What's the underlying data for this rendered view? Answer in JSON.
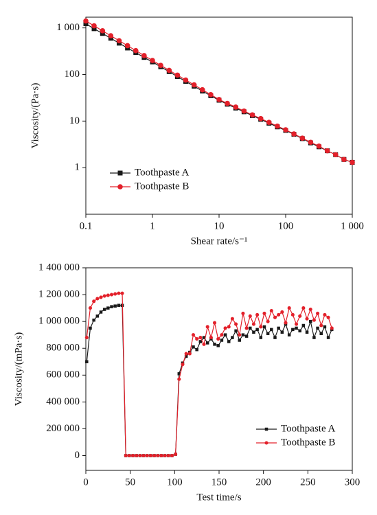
{
  "chart_data": [
    {
      "type": "line",
      "xlabel": "Shear rate/s⁻¹",
      "ylabel": "Viscosity/(Pa·s)",
      "xscale": "log",
      "yscale": "log",
      "xlim": [
        0.1,
        1000
      ],
      "ylim": [
        0.1,
        1700
      ],
      "xticks": [
        0.1,
        1,
        10,
        100,
        {
          "value": 1000,
          "label": "1 000"
        }
      ],
      "yticks": [
        1,
        10,
        100,
        {
          "value": 1000,
          "label": "1 000"
        }
      ],
      "legend": "lower left",
      "x": [
        0.1,
        0.133,
        0.178,
        0.237,
        0.316,
        0.422,
        0.562,
        0.75,
        1,
        1.33,
        1.78,
        2.37,
        3.16,
        4.22,
        5.62,
        7.5,
        10,
        13.3,
        17.8,
        23.7,
        31.6,
        42.2,
        56.2,
        75,
        100,
        133,
        178,
        237,
        316,
        422,
        562,
        750,
        1000
      ],
      "series": [
        {
          "name": "Toothpaste A",
          "color": "#1a1a1a",
          "marker": "square",
          "values": [
            1230,
            960,
            760,
            600,
            470,
            370,
            295,
            232,
            186,
            146,
            115,
            90,
            71,
            56,
            44,
            35,
            28,
            23,
            19,
            15.8,
            13.1,
            10.9,
            9.0,
            7.5,
            6.3,
            5.2,
            4.2,
            3.4,
            2.8,
            2.3,
            1.9,
            1.5,
            1.3
          ]
        },
        {
          "name": "Toothpaste B",
          "color": "#e3202a",
          "marker": "circle",
          "values": [
            1410,
            1110,
            867,
            678,
            531,
            416,
            326,
            255,
            200,
            157,
            123,
            97,
            76,
            60,
            47,
            37,
            29,
            24,
            20,
            16.4,
            13.6,
            11.3,
            9.4,
            7.8,
            6.5,
            5.3,
            4.3,
            3.5,
            2.9,
            2.3,
            1.9,
            1.5,
            1.3
          ]
        }
      ]
    },
    {
      "type": "line",
      "xlabel": "Test time/s",
      "ylabel": "Viscosity/(mPa·s)",
      "xlim": [
        0,
        300
      ],
      "ylim": [
        -110000,
        1400000
      ],
      "xticks": [
        0,
        50,
        100,
        150,
        200,
        250,
        300
      ],
      "yticks": [
        0,
        {
          "value": 200000,
          "label": "200 000"
        },
        {
          "value": 400000,
          "label": "400 000"
        },
        {
          "value": 600000,
          "label": "600 000"
        },
        {
          "value": 800000,
          "label": "800 000"
        },
        {
          "value": 1000000,
          "label": "1 000 000"
        },
        {
          "value": 1200000,
          "label": "1 200 000"
        },
        {
          "value": 1400000,
          "label": "1 400 000"
        }
      ],
      "legend": "lower right",
      "x": [
        1,
        5,
        9,
        13,
        17,
        21,
        25,
        29,
        33,
        37,
        41,
        45,
        49,
        53,
        57,
        61,
        65,
        69,
        73,
        77,
        81,
        85,
        89,
        93,
        97,
        101,
        105,
        109,
        113,
        117,
        121,
        125,
        129,
        133,
        137,
        141,
        145,
        149,
        153,
        157,
        161,
        165,
        169,
        173,
        177,
        181,
        185,
        189,
        193,
        197,
        201,
        205,
        209,
        213,
        217,
        221,
        225,
        229,
        233,
        237,
        241,
        245,
        249,
        253,
        257,
        261,
        265,
        269,
        273,
        277
      ],
      "series": [
        {
          "name": "Toothpaste A",
          "color": "#1a1a1a",
          "marker": "square",
          "values": [
            700000,
            950000,
            1010000,
            1040000,
            1070000,
            1090000,
            1100000,
            1110000,
            1115000,
            1120000,
            1120000,
            0,
            0,
            0,
            0,
            0,
            0,
            0,
            0,
            0,
            0,
            0,
            0,
            0,
            0,
            10000,
            610000,
            690000,
            740000,
            770000,
            810000,
            790000,
            850000,
            880000,
            840000,
            870000,
            830000,
            820000,
            860000,
            900000,
            850000,
            880000,
            930000,
            860000,
            900000,
            890000,
            950000,
            920000,
            940000,
            880000,
            960000,
            910000,
            940000,
            880000,
            950000,
            920000,
            980000,
            900000,
            940000,
            950000,
            930000,
            970000,
            920000,
            1000000,
            880000,
            950000,
            910000,
            960000,
            880000,
            940000
          ]
        },
        {
          "name": "Toothpaste B",
          "color": "#e3202a",
          "marker": "circle",
          "values": [
            880000,
            1100000,
            1150000,
            1170000,
            1180000,
            1190000,
            1195000,
            1200000,
            1205000,
            1210000,
            1210000,
            0,
            0,
            0,
            0,
            0,
            0,
            0,
            0,
            0,
            0,
            0,
            0,
            0,
            0,
            10000,
            570000,
            680000,
            760000,
            760000,
            900000,
            870000,
            880000,
            830000,
            960000,
            880000,
            990000,
            870000,
            900000,
            950000,
            960000,
            1020000,
            980000,
            900000,
            1060000,
            950000,
            1040000,
            980000,
            1050000,
            960000,
            1060000,
            1000000,
            1080000,
            1030000,
            1050000,
            1070000,
            990000,
            1100000,
            1050000,
            980000,
            1040000,
            1100000,
            1020000,
            1090000,
            1010000,
            1060000,
            970000,
            1050000,
            1030000,
            950000
          ]
        }
      ]
    }
  ]
}
